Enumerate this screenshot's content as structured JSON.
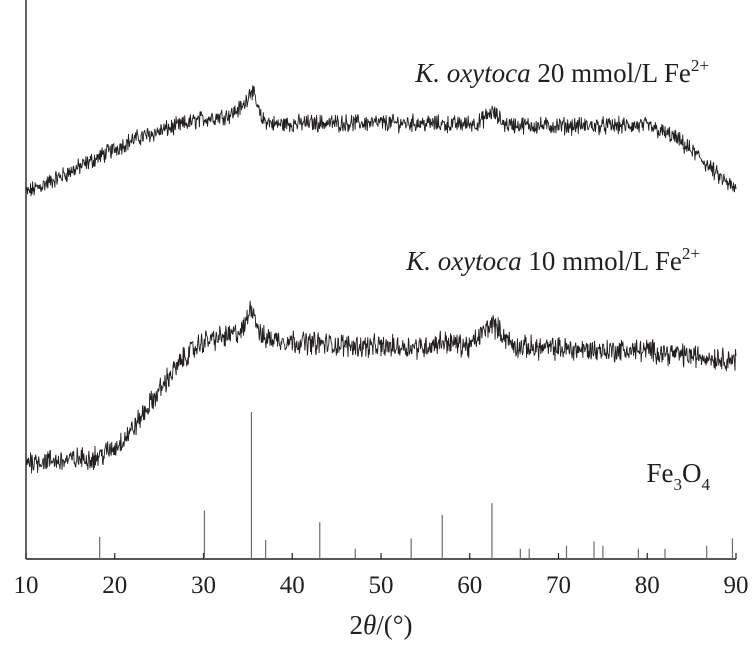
{
  "chart_data": {
    "type": "line",
    "title": "",
    "xlabel": {
      "prefix": "2",
      "symbol": "θ",
      "unit": "/(°)"
    },
    "ylabel": "",
    "xlim": [
      10,
      90
    ],
    "x_ticks": [
      "10",
      "20",
      "30",
      "40",
      "50",
      "60",
      "70",
      "80",
      "90"
    ],
    "grid": false,
    "line_color": "#231f20",
    "series": [
      {
        "name": "K. oxytoca 20 mmol/L Fe2+",
        "label": {
          "italic": "K. oxytoca",
          "plain": " 20 mmol/L Fe",
          "sup": "2+"
        },
        "x": [
          10,
          14,
          18,
          22,
          26,
          30,
          33,
          34.5,
          35.4,
          36.5,
          38,
          42,
          46,
          50,
          54,
          58,
          61,
          62.5,
          64,
          68,
          72,
          76,
          80,
          83,
          86,
          88,
          90
        ],
        "y": [
          0.3,
          0.42,
          0.55,
          0.68,
          0.76,
          0.83,
          0.86,
          0.92,
          1.05,
          0.83,
          0.79,
          0.8,
          0.8,
          0.8,
          0.8,
          0.79,
          0.8,
          0.88,
          0.79,
          0.78,
          0.78,
          0.78,
          0.78,
          0.7,
          0.55,
          0.42,
          0.32
        ],
        "noise": 0.05
      },
      {
        "name": "K. oxytoca 10 mmol/L Fe2+",
        "label": {
          "italic": "K. oxytoca",
          "plain": " 10 mmol/L Fe",
          "sup": "2+"
        },
        "x": [
          10,
          14,
          18,
          20,
          22,
          24,
          26,
          28,
          30,
          33,
          34.5,
          35.4,
          36.5,
          40,
          45,
          50,
          55,
          57,
          60,
          62.5,
          65,
          70,
          75,
          80,
          85,
          90
        ],
        "y": [
          0.05,
          0.05,
          0.07,
          0.12,
          0.22,
          0.36,
          0.5,
          0.62,
          0.7,
          0.73,
          0.76,
          0.9,
          0.72,
          0.7,
          0.68,
          0.67,
          0.67,
          0.7,
          0.67,
          0.8,
          0.67,
          0.66,
          0.65,
          0.65,
          0.62,
          0.6
        ],
        "noise": 0.05
      }
    ],
    "reference": {
      "name": "Fe3O4",
      "label": {
        "base": "Fe",
        "sub1": "3",
        "mid": "O",
        "sub2": "4"
      },
      "peaks": [
        {
          "x": 18.3,
          "h": 0.15
        },
        {
          "x": 30.1,
          "h": 0.33
        },
        {
          "x": 35.4,
          "h": 1.0
        },
        {
          "x": 37.0,
          "h": 0.13
        },
        {
          "x": 43.1,
          "h": 0.25
        },
        {
          "x": 47.1,
          "h": 0.07
        },
        {
          "x": 53.4,
          "h": 0.14
        },
        {
          "x": 56.9,
          "h": 0.3
        },
        {
          "x": 62.5,
          "h": 0.38
        },
        {
          "x": 65.7,
          "h": 0.07
        },
        {
          "x": 66.7,
          "h": 0.07
        },
        {
          "x": 70.9,
          "h": 0.09
        },
        {
          "x": 74.0,
          "h": 0.12
        },
        {
          "x": 75.0,
          "h": 0.09
        },
        {
          "x": 79.0,
          "h": 0.07
        },
        {
          "x": 82.0,
          "h": 0.07
        },
        {
          "x": 86.7,
          "h": 0.09
        },
        {
          "x": 89.6,
          "h": 0.14
        }
      ]
    }
  }
}
